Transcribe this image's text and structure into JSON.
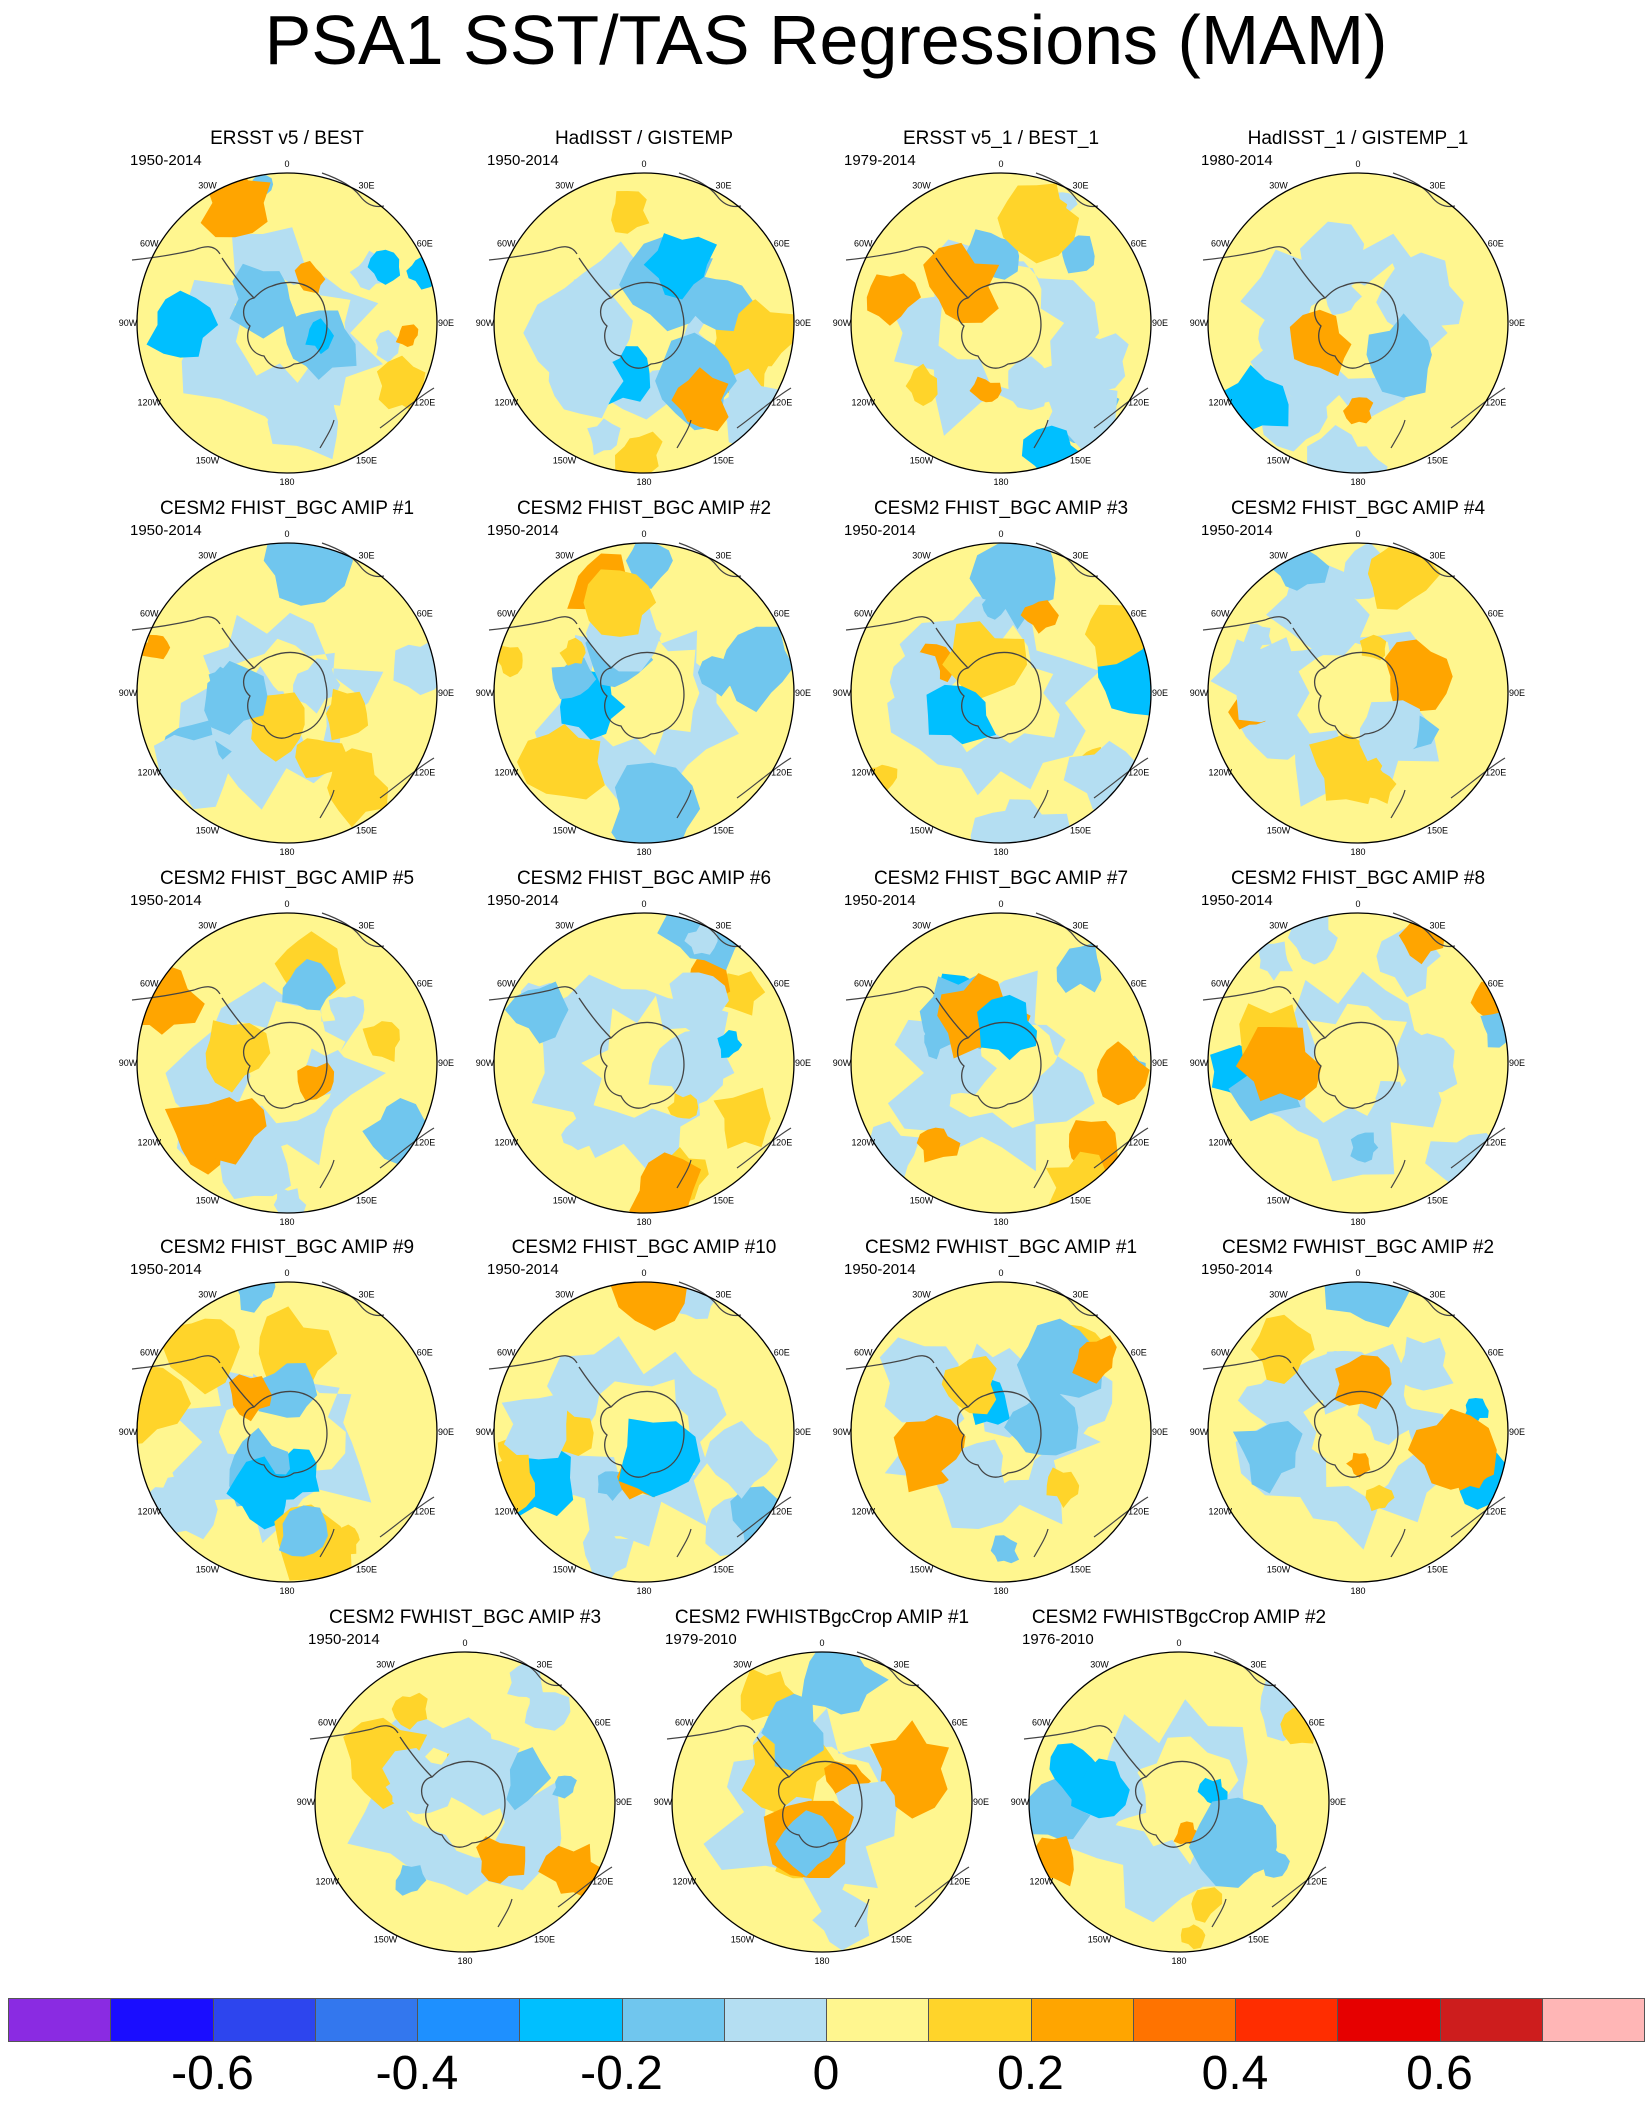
{
  "title": "PSA1 SST/TAS Regressions (MAM)",
  "lon_labels": [
    "0",
    "30E",
    "60E",
    "90E",
    "120E",
    "150E",
    "180",
    "150W",
    "120W",
    "90W",
    "60W",
    "30W"
  ],
  "panels": [
    {
      "title": "ERSST v5 / BEST",
      "period": "1950-2014"
    },
    {
      "title": "HadISST / GISTEMP",
      "period": "1950-2014"
    },
    {
      "title": "ERSST v5_1 / BEST_1",
      "period": "1979-2014"
    },
    {
      "title": "HadISST_1 / GISTEMP_1",
      "period": "1980-2014"
    },
    {
      "title": "CESM2 FHIST_BGC AMIP #1",
      "period": "1950-2014"
    },
    {
      "title": "CESM2 FHIST_BGC AMIP #2",
      "period": "1950-2014"
    },
    {
      "title": "CESM2 FHIST_BGC AMIP #3",
      "period": "1950-2014"
    },
    {
      "title": "CESM2 FHIST_BGC AMIP #4",
      "period": "1950-2014"
    },
    {
      "title": "CESM2 FHIST_BGC AMIP #5",
      "period": "1950-2014"
    },
    {
      "title": "CESM2 FHIST_BGC AMIP #6",
      "period": "1950-2014"
    },
    {
      "title": "CESM2 FHIST_BGC AMIP #7",
      "period": "1950-2014"
    },
    {
      "title": "CESM2 FHIST_BGC AMIP #8",
      "period": "1950-2014"
    },
    {
      "title": "CESM2 FHIST_BGC AMIP #9",
      "period": "1950-2014"
    },
    {
      "title": "CESM2 FHIST_BGC AMIP #10",
      "period": "1950-2014"
    },
    {
      "title": "CESM2 FWHIST_BGC AMIP #1",
      "period": "1950-2014"
    },
    {
      "title": "CESM2 FWHIST_BGC AMIP #2",
      "period": "1950-2014"
    },
    {
      "title": "CESM2 FWHIST_BGC AMIP #3",
      "period": "1950-2014"
    },
    {
      "title": "CESM2 FWHISTBgcCrop AMIP #1",
      "period": "1979-2010"
    },
    {
      "title": "CESM2 FWHISTBgcCrop AMIP #2",
      "period": "1976-2010"
    }
  ],
  "colorbar": {
    "colors": [
      "#8a2be2",
      "#1a0dff",
      "#2d45ee",
      "#3377ee",
      "#1e90ff",
      "#00bfff",
      "#70c6ee",
      "#b4def2",
      "#fff68f",
      "#ffd42a",
      "#ffa500",
      "#ff7300",
      "#ff2d00",
      "#e60000",
      "#cd1d1d",
      "#ffb6b6"
    ],
    "labels": [
      "-0.6",
      "-0.4",
      "-0.2",
      "0",
      "0.2",
      "0.4",
      "0.6"
    ]
  },
  "chart_data": {
    "type": "heatmap",
    "title": "PSA1 SST/TAS Regressions (MAM)",
    "projection": "south polar stereographic",
    "colorbar_levels": [
      -0.7,
      -0.6,
      -0.5,
      -0.4,
      -0.3,
      -0.2,
      -0.1,
      0,
      0.1,
      0.2,
      0.3,
      0.4,
      0.5,
      0.6,
      0.7
    ],
    "colorbar_tick_labels": [
      "-0.6",
      "-0.4",
      "-0.2",
      "0",
      "0.2",
      "0.4",
      "0.6"
    ],
    "panel_count": 19
  }
}
